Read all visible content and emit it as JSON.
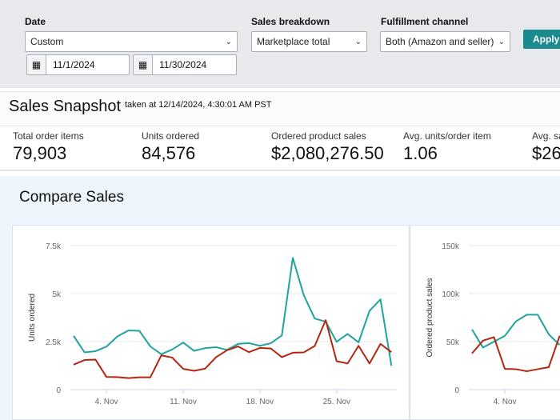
{
  "filters": {
    "date_label": "Date",
    "date_value": "Custom",
    "start_date": "11/1/2024",
    "end_date": "11/30/2024",
    "breakdown_label": "Sales breakdown",
    "breakdown_value": "Marketplace total",
    "channel_label": "Fulfillment channel",
    "channel_value": "Both (Amazon and seller)",
    "apply_label": "Apply"
  },
  "snapshot": {
    "title": "Sales Snapshot",
    "taken_at": "taken at 12/14/2024, 4:30:01 AM PST",
    "metrics": [
      {
        "label": "Total order items",
        "value": "79,903"
      },
      {
        "label": "Units ordered",
        "value": "84,576"
      },
      {
        "label": "Ordered product sales",
        "value": "$2,080,276.50"
      },
      {
        "label": "Avg. units/order item",
        "value": "1.06"
      },
      {
        "label": "Avg. sa",
        "value": "$26"
      }
    ]
  },
  "compare": {
    "title": "Compare Sales"
  },
  "colors": {
    "teal": "#1fa39f",
    "red": "#b3260f",
    "grid": "#e6e9ef"
  },
  "chart_data": [
    {
      "type": "line",
      "ylabel": "Units ordered",
      "ylim": [
        0,
        7500
      ],
      "yticks": [
        "0",
        "2.5k",
        "5k",
        "7.5k"
      ],
      "xticks": [
        {
          "day": 4,
          "label": "4. Nov"
        },
        {
          "day": 11,
          "label": "11. Nov"
        },
        {
          "day": 18,
          "label": "18. Nov"
        },
        {
          "day": 25,
          "label": "25. Nov"
        }
      ],
      "x": [
        1,
        2,
        3,
        4,
        5,
        6,
        7,
        8,
        9,
        10,
        11,
        12,
        13,
        14,
        15,
        16,
        17,
        18,
        19,
        20,
        21,
        22,
        23,
        24,
        25,
        26,
        27,
        28,
        29,
        30
      ],
      "series": [
        {
          "name": "teal",
          "color": "#1fa39f",
          "values": [
            2800,
            1940,
            2000,
            2240,
            2770,
            3080,
            3060,
            2250,
            1840,
            2090,
            2450,
            2020,
            2160,
            2210,
            2070,
            2380,
            2420,
            2280,
            2420,
            2820,
            6860,
            4920,
            3700,
            3540,
            2490,
            2900,
            2460,
            4100,
            4700,
            1240
          ]
        },
        {
          "name": "red",
          "color": "#b3260f",
          "values": [
            1300,
            1540,
            1560,
            660,
            650,
            600,
            640,
            640,
            1780,
            1670,
            1080,
            980,
            1090,
            1690,
            2050,
            2250,
            1950,
            2170,
            2140,
            1690,
            1920,
            1940,
            2270,
            3620,
            1480,
            1360,
            2280,
            1360,
            2380,
            1950
          ]
        }
      ]
    },
    {
      "type": "line",
      "ylabel": "Ordered product sales",
      "ylim": [
        0,
        150000
      ],
      "yticks": [
        "0",
        "50k",
        "100k",
        "150k"
      ],
      "xticks": [
        {
          "day": 4,
          "label": "4. Nov"
        }
      ],
      "x": [
        1,
        2,
        3,
        4,
        5,
        6,
        7,
        8,
        9
      ],
      "series": [
        {
          "name": "teal",
          "color": "#1fa39f",
          "values": [
            62600,
            43800,
            49900,
            56000,
            71000,
            78000,
            78000,
            57600,
            46500
          ]
        },
        {
          "name": "red",
          "color": "#b3260f",
          "values": [
            37700,
            51000,
            54600,
            21600,
            21300,
            19100,
            21300,
            23300,
            56000
          ]
        }
      ]
    }
  ]
}
